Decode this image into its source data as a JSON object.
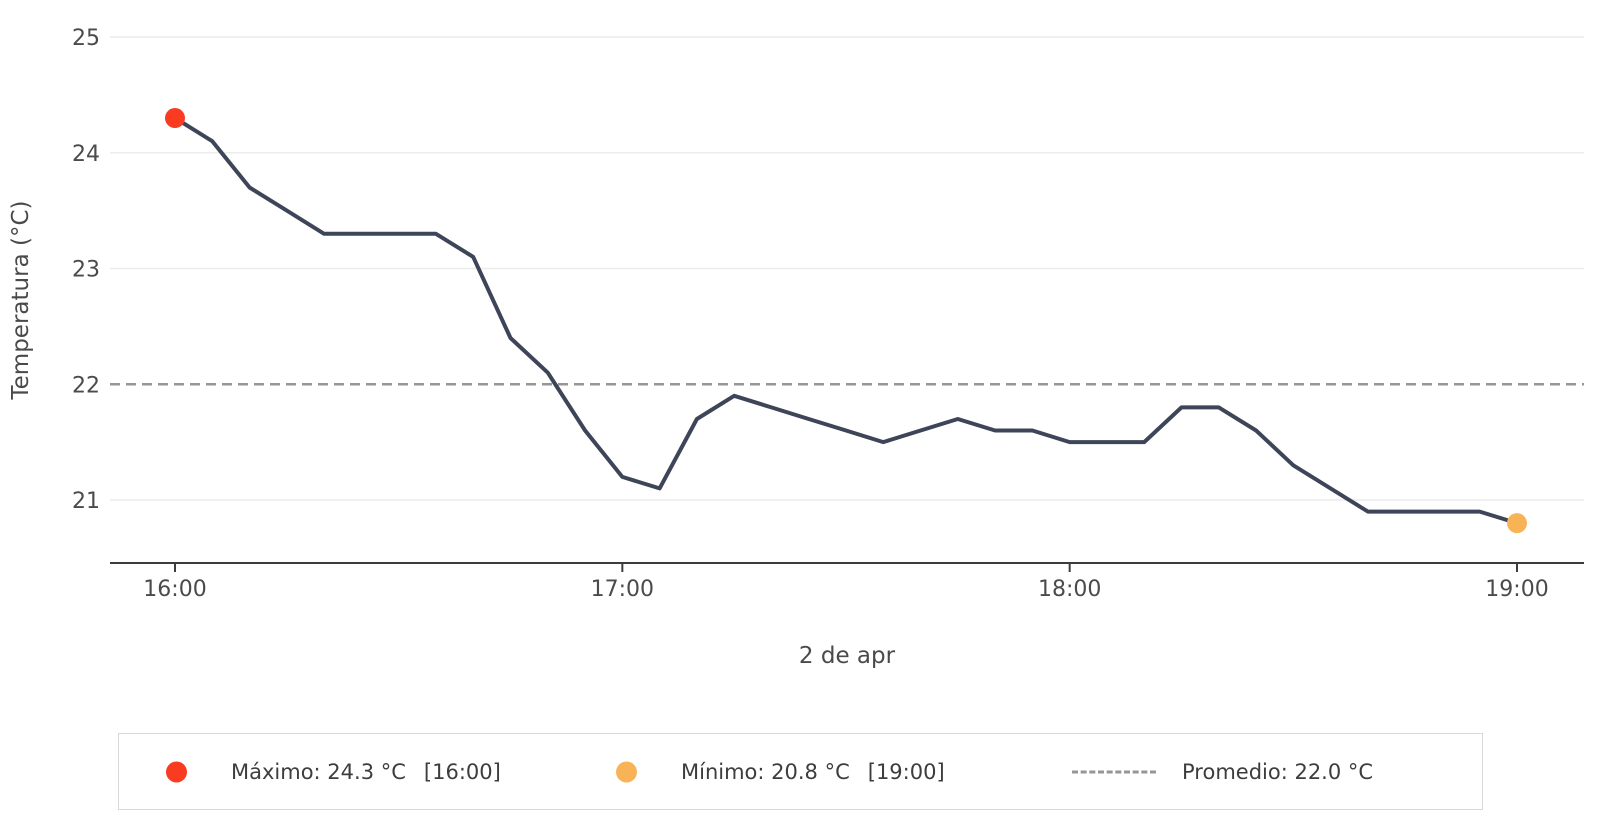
{
  "chart_data": {
    "type": "line",
    "title": "",
    "xlabel": "2 de apr",
    "ylabel": "Temperatura (°C)",
    "series_name": "Temperatura",
    "interval_minutes": 5,
    "x_range_minutes": [
      0,
      180
    ],
    "x_tick_minutes": [
      0,
      60,
      120,
      180
    ],
    "x_tick_labels": [
      "16:00",
      "17:00",
      "18:00",
      "19:00"
    ],
    "y_ticks": [
      21,
      22,
      23,
      24,
      25
    ],
    "ylim": [
      20.45,
      25.1
    ],
    "grid": true,
    "legend_position": "bottom",
    "times": [
      "16:00",
      "16:05",
      "16:10",
      "16:15",
      "16:20",
      "16:25",
      "16:30",
      "16:35",
      "16:40",
      "16:45",
      "16:50",
      "16:55",
      "17:00",
      "17:05",
      "17:10",
      "17:15",
      "17:20",
      "17:25",
      "17:30",
      "17:35",
      "17:40",
      "17:45",
      "17:50",
      "17:55",
      "18:00",
      "18:05",
      "18:10",
      "18:15",
      "18:20",
      "18:25",
      "18:30",
      "18:35",
      "18:40",
      "18:45",
      "18:50",
      "18:55",
      "19:00"
    ],
    "values": [
      24.3,
      24.1,
      23.7,
      23.5,
      23.3,
      23.3,
      23.3,
      23.3,
      23.1,
      22.4,
      22.1,
      21.6,
      21.2,
      21.1,
      21.7,
      21.9,
      21.8,
      21.7,
      21.6,
      21.5,
      21.6,
      21.7,
      21.6,
      21.6,
      21.5,
      21.5,
      21.5,
      21.8,
      21.8,
      21.6,
      21.3,
      21.1,
      20.9,
      20.9,
      20.9,
      20.9,
      20.8
    ],
    "average": 22.0,
    "max": {
      "value": 24.3,
      "time": "16:00"
    },
    "min": {
      "value": 20.8,
      "time": "19:00"
    },
    "colors": {
      "line": "#3e4559",
      "max_marker": "#f93b22",
      "min_marker": "#f9b357",
      "average_line": "#969696",
      "grid": "#ececec",
      "axis": "#3c3c3c",
      "tick_text": "#4b4b4b",
      "title_text": "#4a4a4a"
    }
  },
  "legend": {
    "max_text": "Máximo: 24.3 °C",
    "max_time": "[16:00]",
    "min_text": "Mínimo: 20.8 °C",
    "min_time": "[19:00]",
    "avg_text": "Promedio: 22.0 °C"
  }
}
